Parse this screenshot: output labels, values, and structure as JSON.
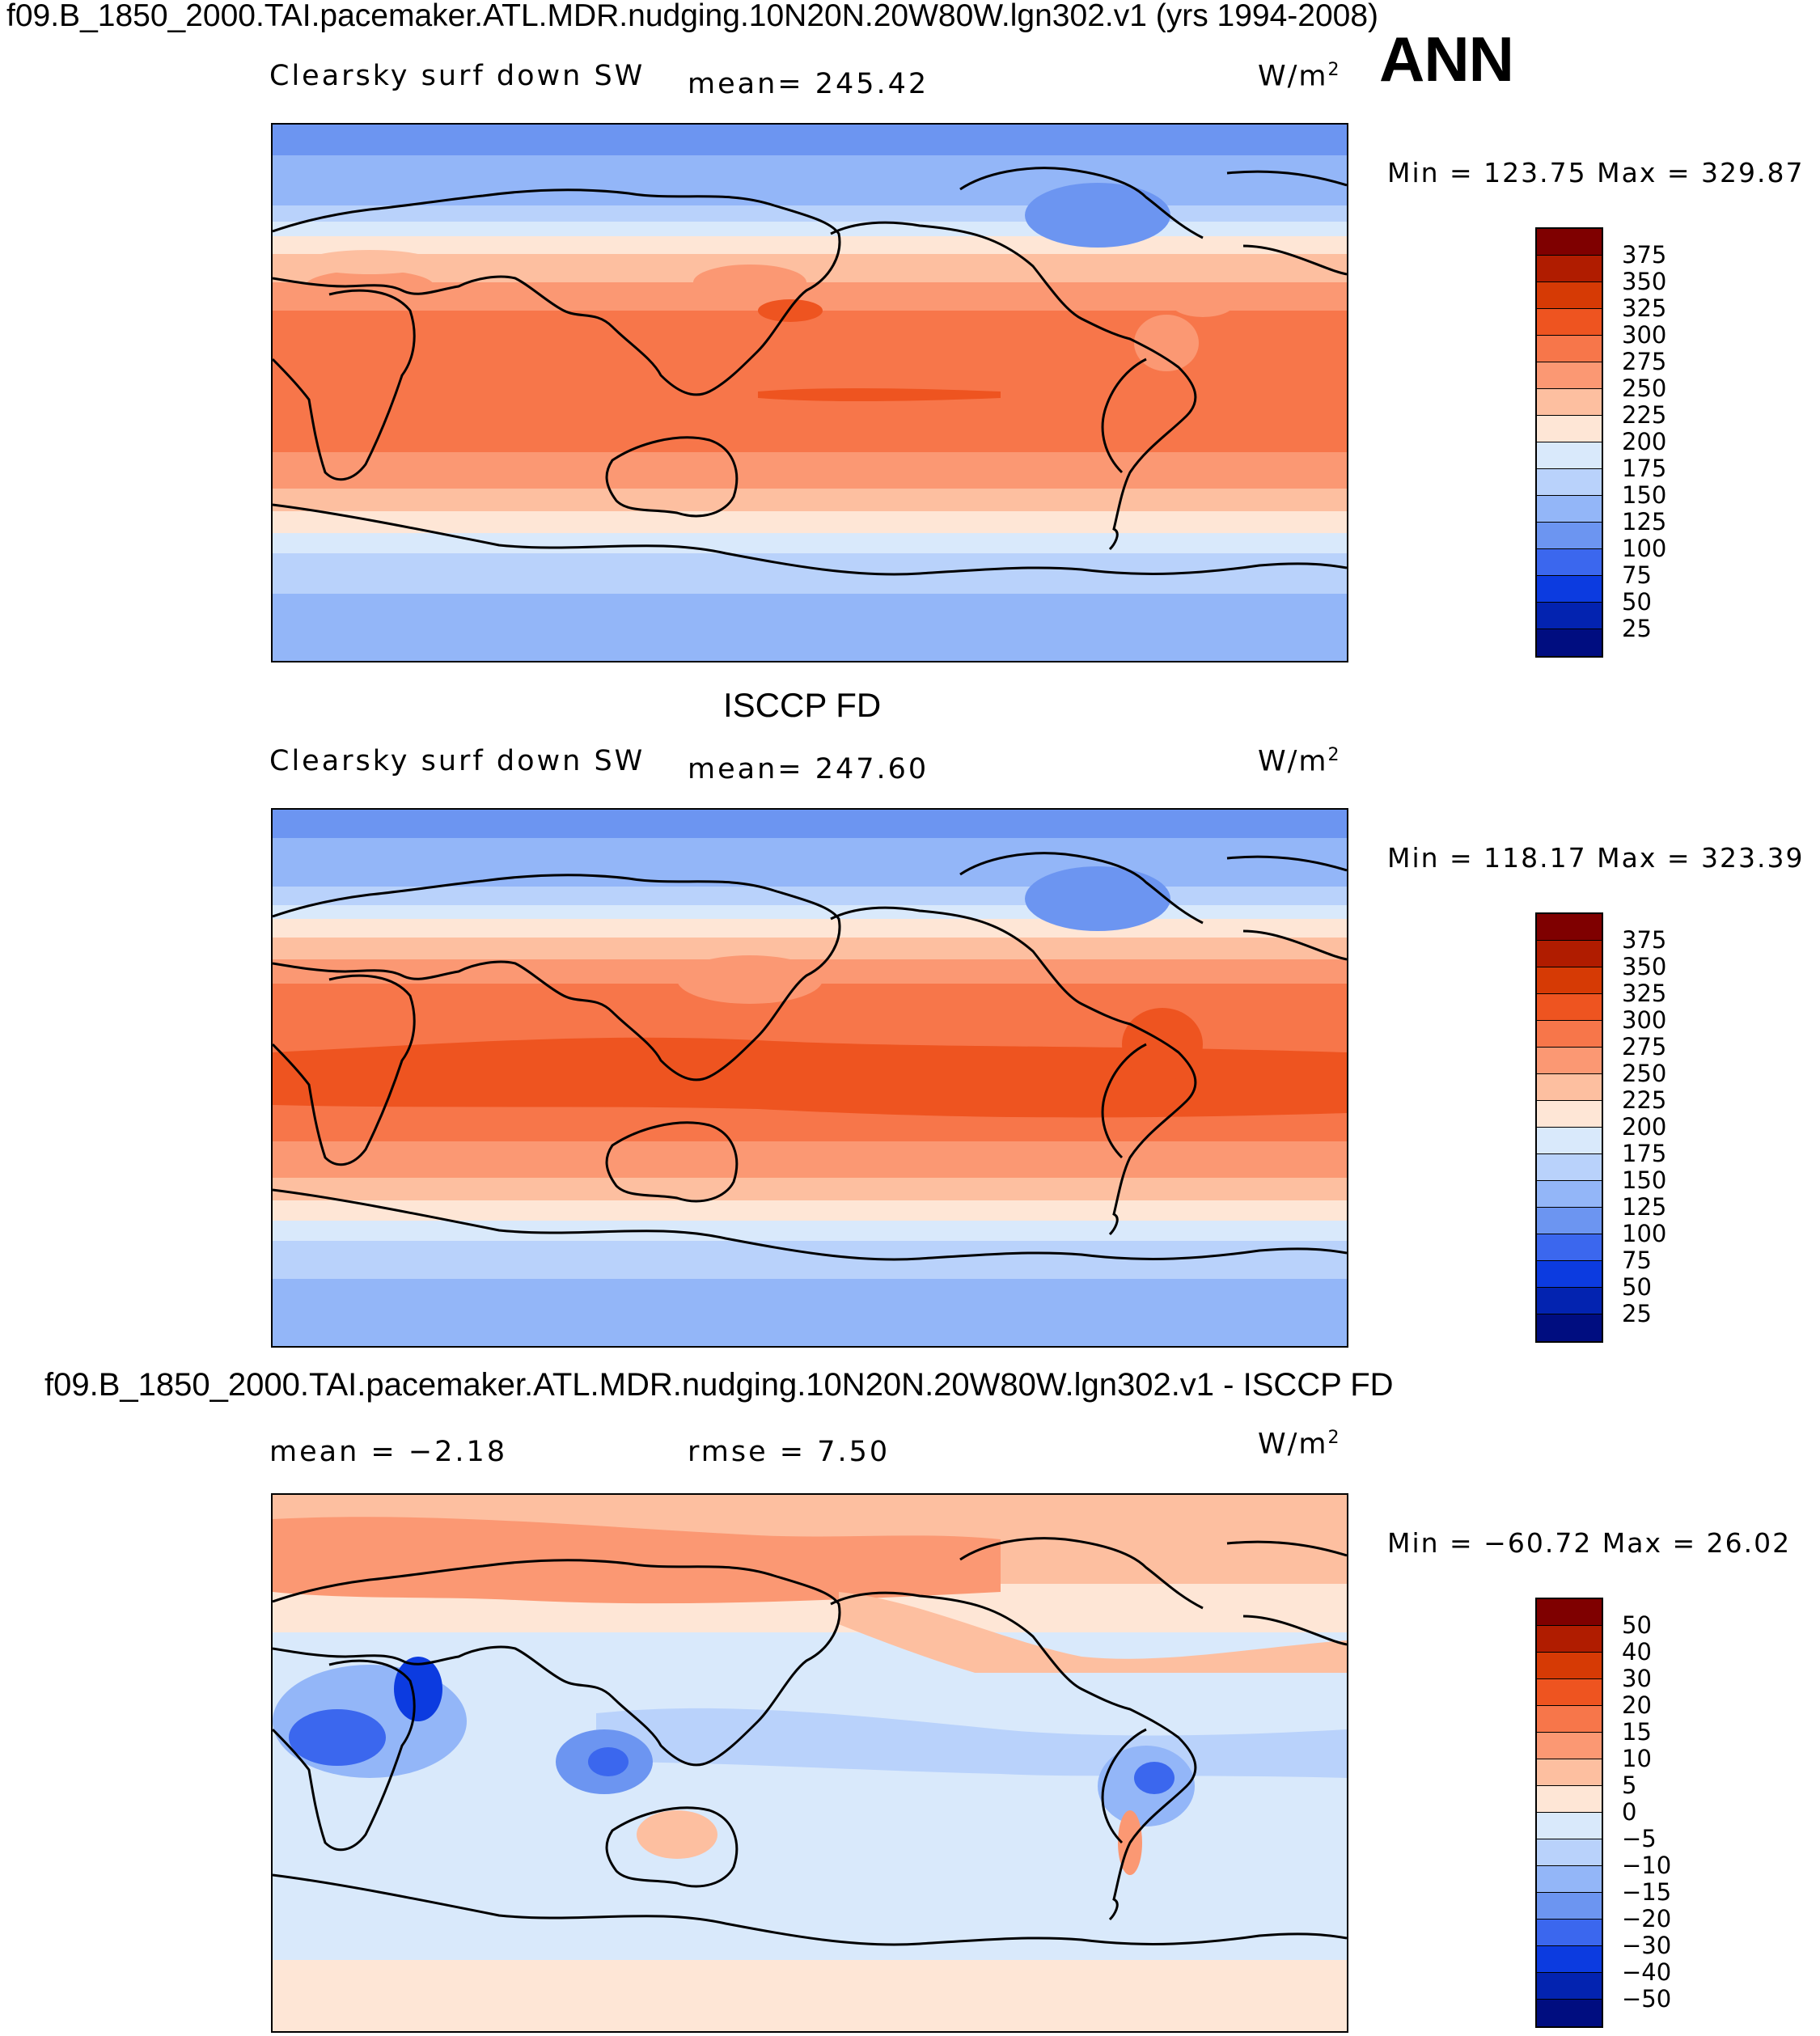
{
  "header": {
    "title": "f09.B_1850_2000.TAI.pacemaker.ATL.MDR.nudging.10N20N.20W80W.lgn302.v1 (yrs 1994-2008)",
    "season": "ANN"
  },
  "panels": [
    {
      "id": "model",
      "heading": "",
      "variable": "Clearsky surf down SW",
      "stat": "mean= 245.42",
      "units": "W/m",
      "units_sup": "2",
      "minmax": "Min = 123.75 Max = 329.87"
    },
    {
      "id": "obs",
      "heading": "ISCCP FD",
      "variable": "Clearsky surf down SW",
      "stat": "mean= 247.60",
      "units": "W/m",
      "units_sup": "2",
      "minmax": "Min = 118.17 Max = 323.39"
    },
    {
      "id": "diff",
      "heading": "f09.B_1850_2000.TAI.pacemaker.ATL.MDR.nudging.10N20N.20W80W.lgn302.v1 - ISCCP FD",
      "stat_mean": "mean =   −2.18",
      "stat_rmse": "rmse =     7.50",
      "units": "W/m",
      "units_sup": "2",
      "minmax": "Min = −60.72 Max =   26.02"
    }
  ],
  "colorbars": {
    "abs": {
      "labels": [
        "375",
        "350",
        "325",
        "300",
        "275",
        "250",
        "225",
        "200",
        "175",
        "150",
        "125",
        "100",
        "75",
        "50",
        "25"
      ],
      "colors": [
        "#7f0000",
        "#b01c00",
        "#d63a05",
        "#ee5420",
        "#f7764a",
        "#fb9873",
        "#fdbfa0",
        "#fee6d6",
        "#d9e9fb",
        "#b9d2fb",
        "#93b6f8",
        "#6c95f1",
        "#3b67ee",
        "#0c3be0",
        "#0323b0",
        "#000d80"
      ]
    },
    "diff": {
      "labels": [
        "50",
        "40",
        "30",
        "20",
        "15",
        "10",
        "5",
        "0",
        "−5",
        "−10",
        "−15",
        "−20",
        "−30",
        "−40",
        "−50"
      ],
      "colors": [
        "#7f0000",
        "#b01c00",
        "#d63a05",
        "#ee5420",
        "#f7764a",
        "#fb9873",
        "#fdbfa0",
        "#fee6d6",
        "#d9e9fb",
        "#b9d2fb",
        "#93b6f8",
        "#6c95f1",
        "#3b67ee",
        "#0c3be0",
        "#0323b0",
        "#000d80"
      ]
    }
  }
}
